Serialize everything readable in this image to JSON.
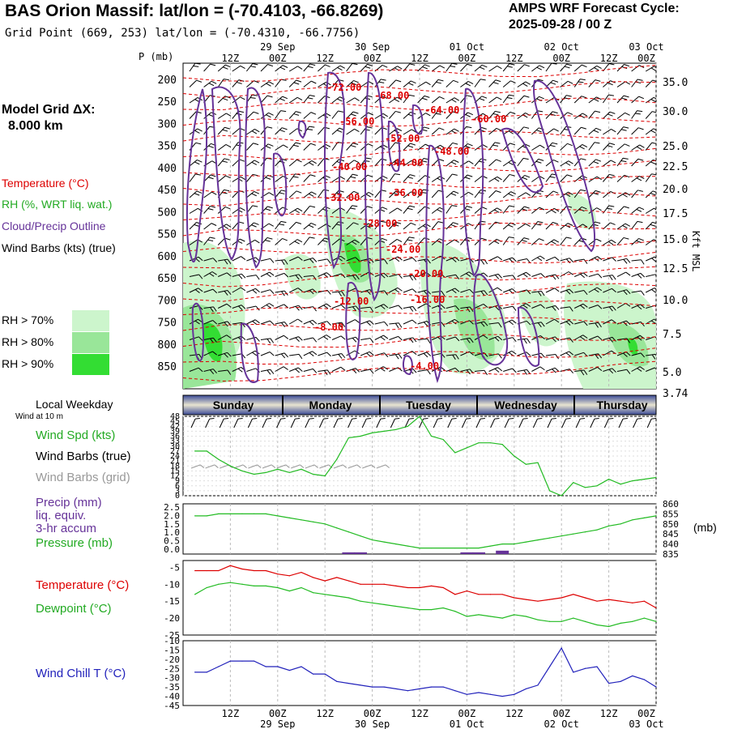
{
  "header": {
    "title": "BAS Orion Massif:  lat/lon = (-70.4103, -66.8269)",
    "subtitle": "Grid Point (669, 253) lat/lon = (-70.4310, -66.7756)",
    "cycle_label": "AMPS WRF Forecast Cycle:",
    "cycle_value": "2025-09-28 / 00  Z"
  },
  "model_grid": {
    "line1": "Model Grid ΔX:",
    "line2": "8.000 km"
  },
  "legend": {
    "temperature": "Temperature (°C)",
    "rh": "RH (%, WRT liq. wat.)",
    "cloud": "Cloud/Precip Outline",
    "wind": "Wind Barbs (kts) (true)",
    "rh70": "RH > 70%",
    "rh80": "RH > 80%",
    "rh90": "RH > 90%"
  },
  "colors": {
    "temperature": "#dd0000",
    "rh_text": "#22aa22",
    "cloud": "#663399",
    "rh70": "#ccf5cc",
    "rh80": "#99e699",
    "rh90": "#33dd33",
    "weekday_band": "#5566aa",
    "weekday_band_light": "#e8e4d0",
    "wind_speed": "#22bb22",
    "pressure": "#22bb22",
    "dewpoint": "#22bb22",
    "precip": "#663399",
    "wind_chill": "#2222bb",
    "grid_barbs": "#999999"
  },
  "time_axis": {
    "top_dates": [
      "29 Sep",
      "30 Sep",
      "01 Oct",
      "02 Oct",
      "03 Oct"
    ],
    "top_hours": [
      "12Z",
      "00Z",
      "12Z",
      "00Z",
      "12Z",
      "00Z",
      "12Z",
      "00Z",
      "12Z",
      "00Z"
    ],
    "bottom_hours": [
      "12Z",
      "00Z",
      "12Z",
      "00Z",
      "12Z",
      "00Z",
      "12Z",
      "00Z",
      "12Z",
      "00Z"
    ],
    "bottom_dates": [
      "29 Sep",
      "30 Sep",
      "01 Oct",
      "02 Oct",
      "03 Oct"
    ]
  },
  "upper_panel": {
    "p_label": "P (mb)",
    "kft_label": "Kft MSL",
    "pressure_ticks": [
      "200",
      "250",
      "300",
      "350",
      "400",
      "450",
      "500",
      "550",
      "600",
      "650",
      "700",
      "750",
      "800",
      "850"
    ],
    "kft_ticks": [
      "35.0",
      "30.0",
      "25.0",
      "22.5",
      "20.0",
      "17.5",
      "15.0",
      "12.5",
      "10.0",
      "7.5",
      "5.0",
      "3.74"
    ],
    "temp_labels": [
      "-72.00",
      "-68.00",
      "-64.00",
      "-60.00",
      "-56.00",
      "-52.00",
      "-48.00",
      "-44.00",
      "-40.00",
      "-36.00",
      "-32.00",
      "-28.00",
      "-24.00",
      "-20.00",
      "-16.00",
      "-12.00",
      "-8.00",
      "-4.00"
    ]
  },
  "weekdays": {
    "label": "Local Weekday",
    "days": [
      "Sunday",
      "Monday",
      "Tuesday",
      "Wednesday",
      "Thursday"
    ]
  },
  "wind_panel": {
    "subtitle": "Wind at 10 m",
    "speed_label": "Wind Spd (kts)",
    "barbs_true_label": "Wind Barbs (true)",
    "barbs_grid_label": "Wind Barbs (grid)",
    "ticks": [
      "48",
      "45",
      "42",
      "39",
      "36",
      "33",
      "30",
      "27",
      "24",
      "21",
      "18",
      "15",
      "12",
      "9",
      "6",
      "3",
      "0"
    ]
  },
  "precip_panel": {
    "precip_label": "Precip (mm)",
    "liq_label": "liq. equiv.",
    "accum_label": "3-hr accum",
    "pressure_label": "Pressure (mb)",
    "left_ticks": [
      "2.5",
      "2.0",
      "1.5",
      "1.0",
      "0.5",
      "0.0"
    ],
    "right_ticks": [
      "860",
      "855",
      "850",
      "845",
      "840",
      "835"
    ],
    "unit": "(mb)"
  },
  "temp_panel": {
    "temp_label": "Temperature (°C)",
    "dew_label": "Dewpoint (°C)",
    "ticks": [
      "-5",
      "-10",
      "-15",
      "-20",
      "-25"
    ]
  },
  "chill_panel": {
    "label": "Wind Chill T (°C)",
    "ticks": [
      "-10",
      "-15",
      "-20",
      "-25",
      "-30",
      "-35",
      "-40",
      "-45"
    ]
  },
  "chart_data": [
    {
      "type": "line",
      "name": "wind_speed_10m",
      "ylim": [
        0,
        48
      ],
      "x": [
        3,
        6,
        9,
        12,
        15,
        18,
        21,
        24,
        27,
        30,
        33,
        36,
        39,
        42,
        45,
        48,
        51,
        54,
        57,
        60,
        63,
        66,
        69,
        72,
        75,
        78,
        81,
        84,
        87,
        90,
        93,
        96,
        99,
        102,
        105,
        108,
        111,
        114,
        117,
        120
      ],
      "values": [
        27,
        27,
        22,
        18,
        15,
        13,
        14,
        16,
        14,
        16,
        13,
        12,
        22,
        35,
        36,
        38,
        39,
        40,
        42,
        48,
        36,
        34,
        26,
        29,
        32,
        32,
        31,
        24,
        19,
        20,
        3,
        0,
        8,
        5,
        6,
        10,
        7,
        9,
        10,
        11
      ]
    },
    {
      "type": "line",
      "name": "surface_pressure",
      "ylim": [
        835,
        860
      ],
      "x": [
        3,
        6,
        9,
        12,
        15,
        18,
        21,
        24,
        27,
        30,
        33,
        36,
        39,
        42,
        45,
        48,
        51,
        54,
        57,
        60,
        63,
        66,
        69,
        72,
        75,
        78,
        81,
        84,
        87,
        90,
        93,
        96,
        99,
        102,
        105,
        108,
        111,
        114,
        117,
        120
      ],
      "values": [
        854,
        854,
        855,
        855,
        855,
        855,
        855,
        854,
        853,
        852,
        851,
        850,
        848,
        846,
        844,
        842,
        841,
        840,
        839,
        838,
        838,
        838,
        838,
        838,
        838,
        839,
        840,
        840,
        841,
        842,
        843,
        844,
        845,
        846,
        847,
        849,
        850,
        852,
        853,
        854
      ]
    },
    {
      "type": "bar",
      "name": "precip_3hr",
      "x": [
        42,
        45,
        72,
        75,
        81
      ],
      "values": [
        0.1,
        0.1,
        0.1,
        0.1,
        0.2
      ]
    },
    {
      "type": "line",
      "name": "temperature_2m",
      "ylim": [
        -25,
        -3
      ],
      "x": [
        3,
        6,
        9,
        12,
        15,
        18,
        21,
        24,
        27,
        30,
        33,
        36,
        39,
        42,
        45,
        48,
        51,
        54,
        57,
        60,
        63,
        66,
        69,
        72,
        75,
        78,
        81,
        84,
        87,
        90,
        93,
        96,
        99,
        102,
        105,
        108,
        111,
        114,
        117,
        120
      ],
      "values": [
        -6,
        -6,
        -6,
        -4.5,
        -5.5,
        -6,
        -6,
        -7,
        -7.5,
        -6.5,
        -8,
        -9,
        -8,
        -9,
        -10,
        -10,
        -10,
        -10.5,
        -11,
        -11,
        -10.5,
        -11,
        -13,
        -12,
        -13,
        -13,
        -13,
        -14,
        -14.5,
        -15,
        -14.5,
        -14,
        -13,
        -14,
        -15,
        -14.5,
        -15,
        -15.5,
        -15,
        -17
      ]
    },
    {
      "type": "line",
      "name": "dewpoint_2m",
      "ylim": [
        -25,
        -3
      ],
      "x": [
        3,
        6,
        9,
        12,
        15,
        18,
        21,
        24,
        27,
        30,
        33,
        36,
        39,
        42,
        45,
        48,
        51,
        54,
        57,
        60,
        63,
        66,
        69,
        72,
        75,
        78,
        81,
        84,
        87,
        90,
        93,
        96,
        99,
        102,
        105,
        108,
        111,
        114,
        117,
        120
      ],
      "values": [
        -13,
        -11,
        -10,
        -9.5,
        -10,
        -10.5,
        -10.5,
        -11,
        -12,
        -11,
        -12.5,
        -13,
        -13.5,
        -14,
        -15,
        -15.5,
        -16,
        -16.5,
        -17,
        -17.5,
        -17.5,
        -17,
        -18,
        -19.5,
        -19,
        -19.5,
        -20,
        -19,
        -19.5,
        -20.5,
        -21,
        -21,
        -20,
        -21,
        -22,
        -22.5,
        -21.5,
        -21,
        -20,
        -21
      ]
    },
    {
      "type": "line",
      "name": "wind_chill",
      "ylim": [
        -45,
        -10
      ],
      "x": [
        3,
        6,
        9,
        12,
        15,
        18,
        21,
        24,
        27,
        30,
        33,
        36,
        39,
        42,
        45,
        48,
        51,
        54,
        57,
        60,
        63,
        66,
        69,
        72,
        75,
        78,
        81,
        84,
        87,
        90,
        93,
        96,
        99,
        102,
        105,
        108,
        111,
        114,
        117,
        120
      ],
      "values": [
        -27,
        -27,
        -24,
        -21,
        -21,
        -21,
        -24,
        -24,
        -26,
        -24,
        -28,
        -28,
        -32,
        -33,
        -34,
        -35,
        -35,
        -36,
        -37,
        -36,
        -35,
        -35,
        -37,
        -39,
        -38,
        -39,
        -40,
        -39,
        -36,
        -34,
        -24,
        -14,
        -27,
        -25,
        -24,
        -33,
        -32,
        -29,
        -31,
        -35
      ]
    }
  ]
}
